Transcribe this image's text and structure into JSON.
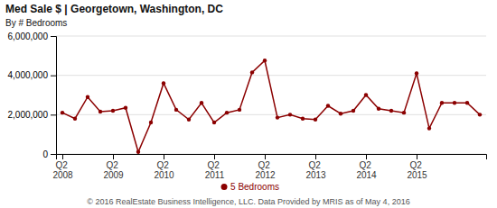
{
  "chart_data": {
    "type": "line",
    "title": "Med Sale $ | Georgetown, Washington, DC",
    "subtitle": "By # Bedrooms",
    "footer": "© 2016 RealEstate Business Intelligence, LLC. Data Provided by MRIS as of May 4, 2016",
    "categories": [
      "Q2\n2008",
      null,
      null,
      null,
      "Q2\n2009",
      null,
      null,
      null,
      "Q2\n2010",
      null,
      null,
      null,
      "Q2\n2011",
      null,
      null,
      null,
      "Q2\n2012",
      null,
      null,
      null,
      "Q2\n2013",
      null,
      null,
      null,
      "Q2\n2014",
      null,
      null,
      null,
      "Q2\n2015",
      null,
      null,
      null,
      null,
      null
    ],
    "series": [
      {
        "name": "5 Bedrooms",
        "color": "#8b0000",
        "marker": "circle",
        "values": [
          2100000,
          1800000,
          2900000,
          2150000,
          2200000,
          2350000,
          100000,
          1600000,
          3600000,
          2250000,
          1750000,
          2600000,
          1600000,
          2100000,
          2250000,
          4150000,
          4750000,
          1850000,
          2000000,
          1800000,
          1750000,
          2450000,
          2050000,
          2200000,
          3000000,
          2300000,
          2200000,
          2100000,
          4100000,
          1300000,
          2600000,
          2600000,
          2600000,
          2000000
        ]
      }
    ],
    "ylim": [
      0,
      6000000
    ],
    "yticks": [
      0,
      {
        "value": 2000000,
        "label": "2,000,000"
      },
      {
        "value": 4000000,
        "label": "4,000,000"
      },
      {
        "value": 6000000,
        "label": "6,000,000"
      }
    ],
    "grid": true
  }
}
